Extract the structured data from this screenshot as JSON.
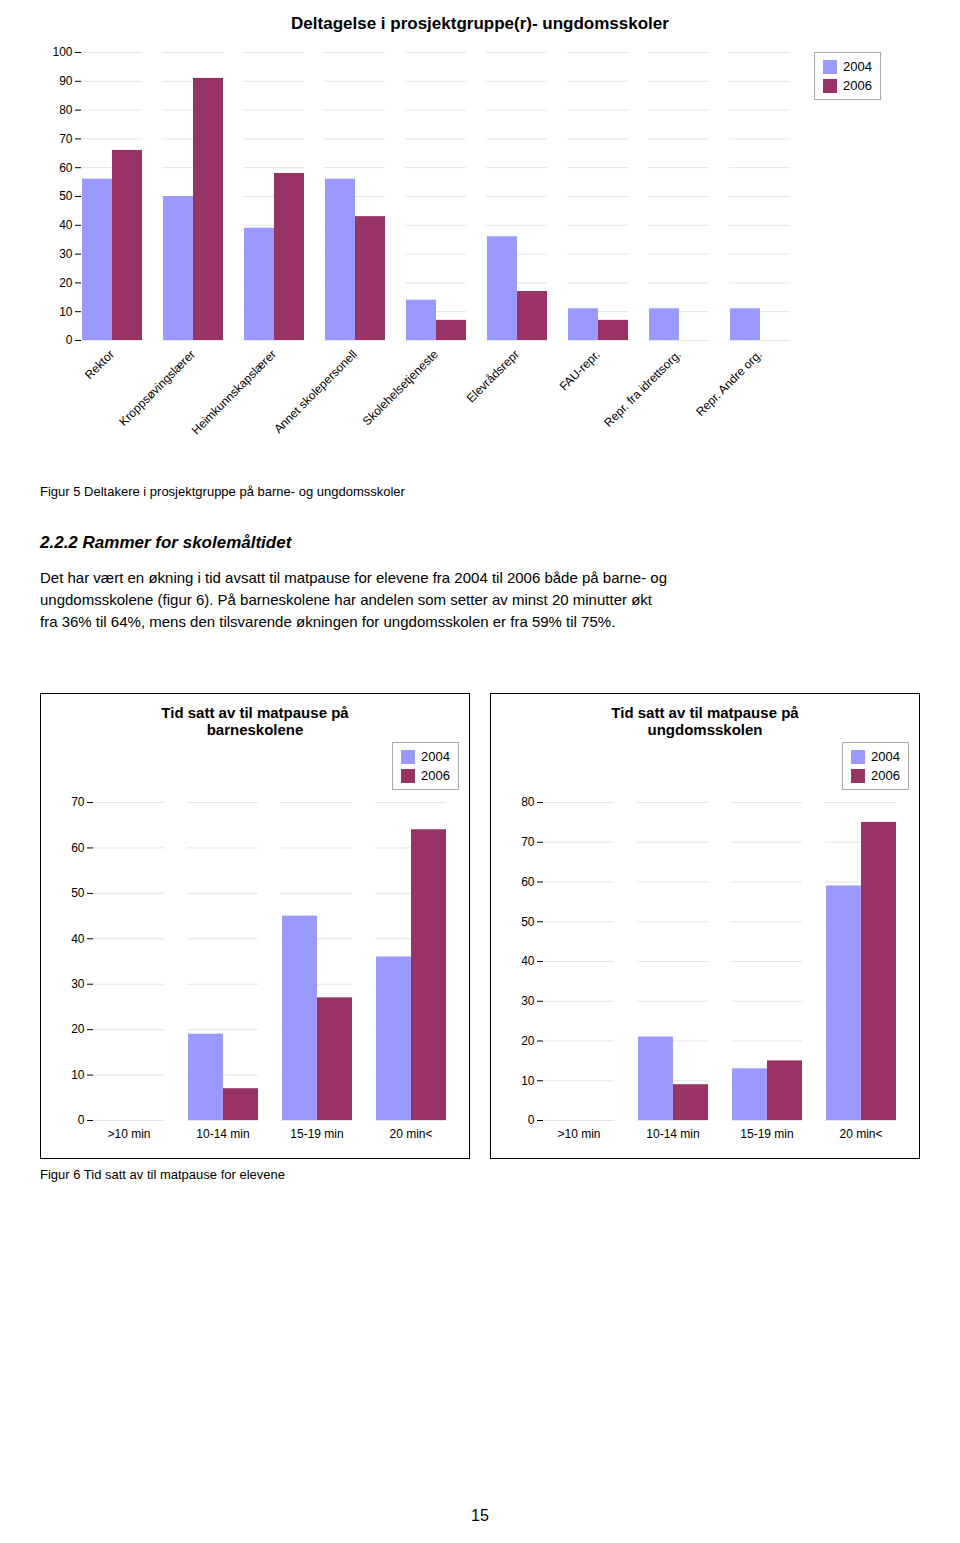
{
  "chart_data": [
    {
      "type": "bar",
      "title": "Deltagelse i prosjektgruppe(r)- ungdomsskoler",
      "categories": [
        "Rektor",
        "Kroppsøvingslærer",
        "Heimkunnskapslærer",
        "Annet skolepersonell",
        "Skolehelsetjeneste",
        "Elevrådsrepr",
        "FAU-repr.",
        "Repr. fra idrettsorg.",
        "Repr. Andre org."
      ],
      "series": [
        {
          "name": "2004",
          "color": "#9999ff",
          "values": [
            56,
            50,
            39,
            56,
            14,
            36,
            11,
            11,
            11
          ]
        },
        {
          "name": "2006",
          "color": "#993366",
          "values": [
            66,
            91,
            58,
            43,
            7,
            17,
            7,
            0,
            0
          ]
        }
      ],
      "ylim": [
        0,
        100
      ],
      "yticks": [
        0,
        10,
        20,
        30,
        40,
        50,
        60,
        70,
        80,
        90,
        100
      ],
      "grid": true,
      "legend": "right"
    },
    {
      "type": "bar",
      "title": "Tid satt av til matpause på\nbarneskolene",
      "categories": [
        ">10 min",
        "10-14 min",
        "15-19 min",
        "20 min<"
      ],
      "series": [
        {
          "name": "2004",
          "color": "#9999ff",
          "values": [
            0,
            19,
            45,
            36
          ]
        },
        {
          "name": "2006",
          "color": "#993366",
          "values": [
            0,
            7,
            27,
            64
          ]
        }
      ],
      "ylim": [
        0,
        70
      ],
      "yticks": [
        0,
        10,
        20,
        30,
        40,
        50,
        60,
        70
      ],
      "grid": true,
      "legend": "upper right"
    },
    {
      "type": "bar",
      "title": "Tid satt av til matpause på\nungdomsskolen",
      "categories": [
        ">10 min",
        "10-14 min",
        "15-19 min",
        "20 min<"
      ],
      "series": [
        {
          "name": "2004",
          "color": "#9999ff",
          "values": [
            0,
            21,
            13,
            59
          ]
        },
        {
          "name": "2006",
          "color": "#993366",
          "values": [
            0,
            9,
            15,
            75
          ]
        }
      ],
      "ylim": [
        0,
        80
      ],
      "yticks": [
        0,
        10,
        20,
        30,
        40,
        50,
        60,
        70,
        80
      ],
      "grid": true,
      "legend": "upper right"
    }
  ],
  "annotations": [
    "Figur 5 Deltakere i prosjektgruppe på barne- og ungdomsskoler",
    "2.2.2 Rammer for skolemåltidet",
    "Det har vært en økning i tid avsatt til matpause for elevene fra 2004 til 2006 både på barne- og",
    "ungdomsskolene (figur 6). På barneskolene har andelen som setter av minst 20 minutter økt",
    "fra 36% til 64%, mens den tilsvarende økningen for ungdomsskolen er fra 59% til 75%.",
    "Figur 6 Tid satt av til matpause for elevene",
    "15"
  ]
}
